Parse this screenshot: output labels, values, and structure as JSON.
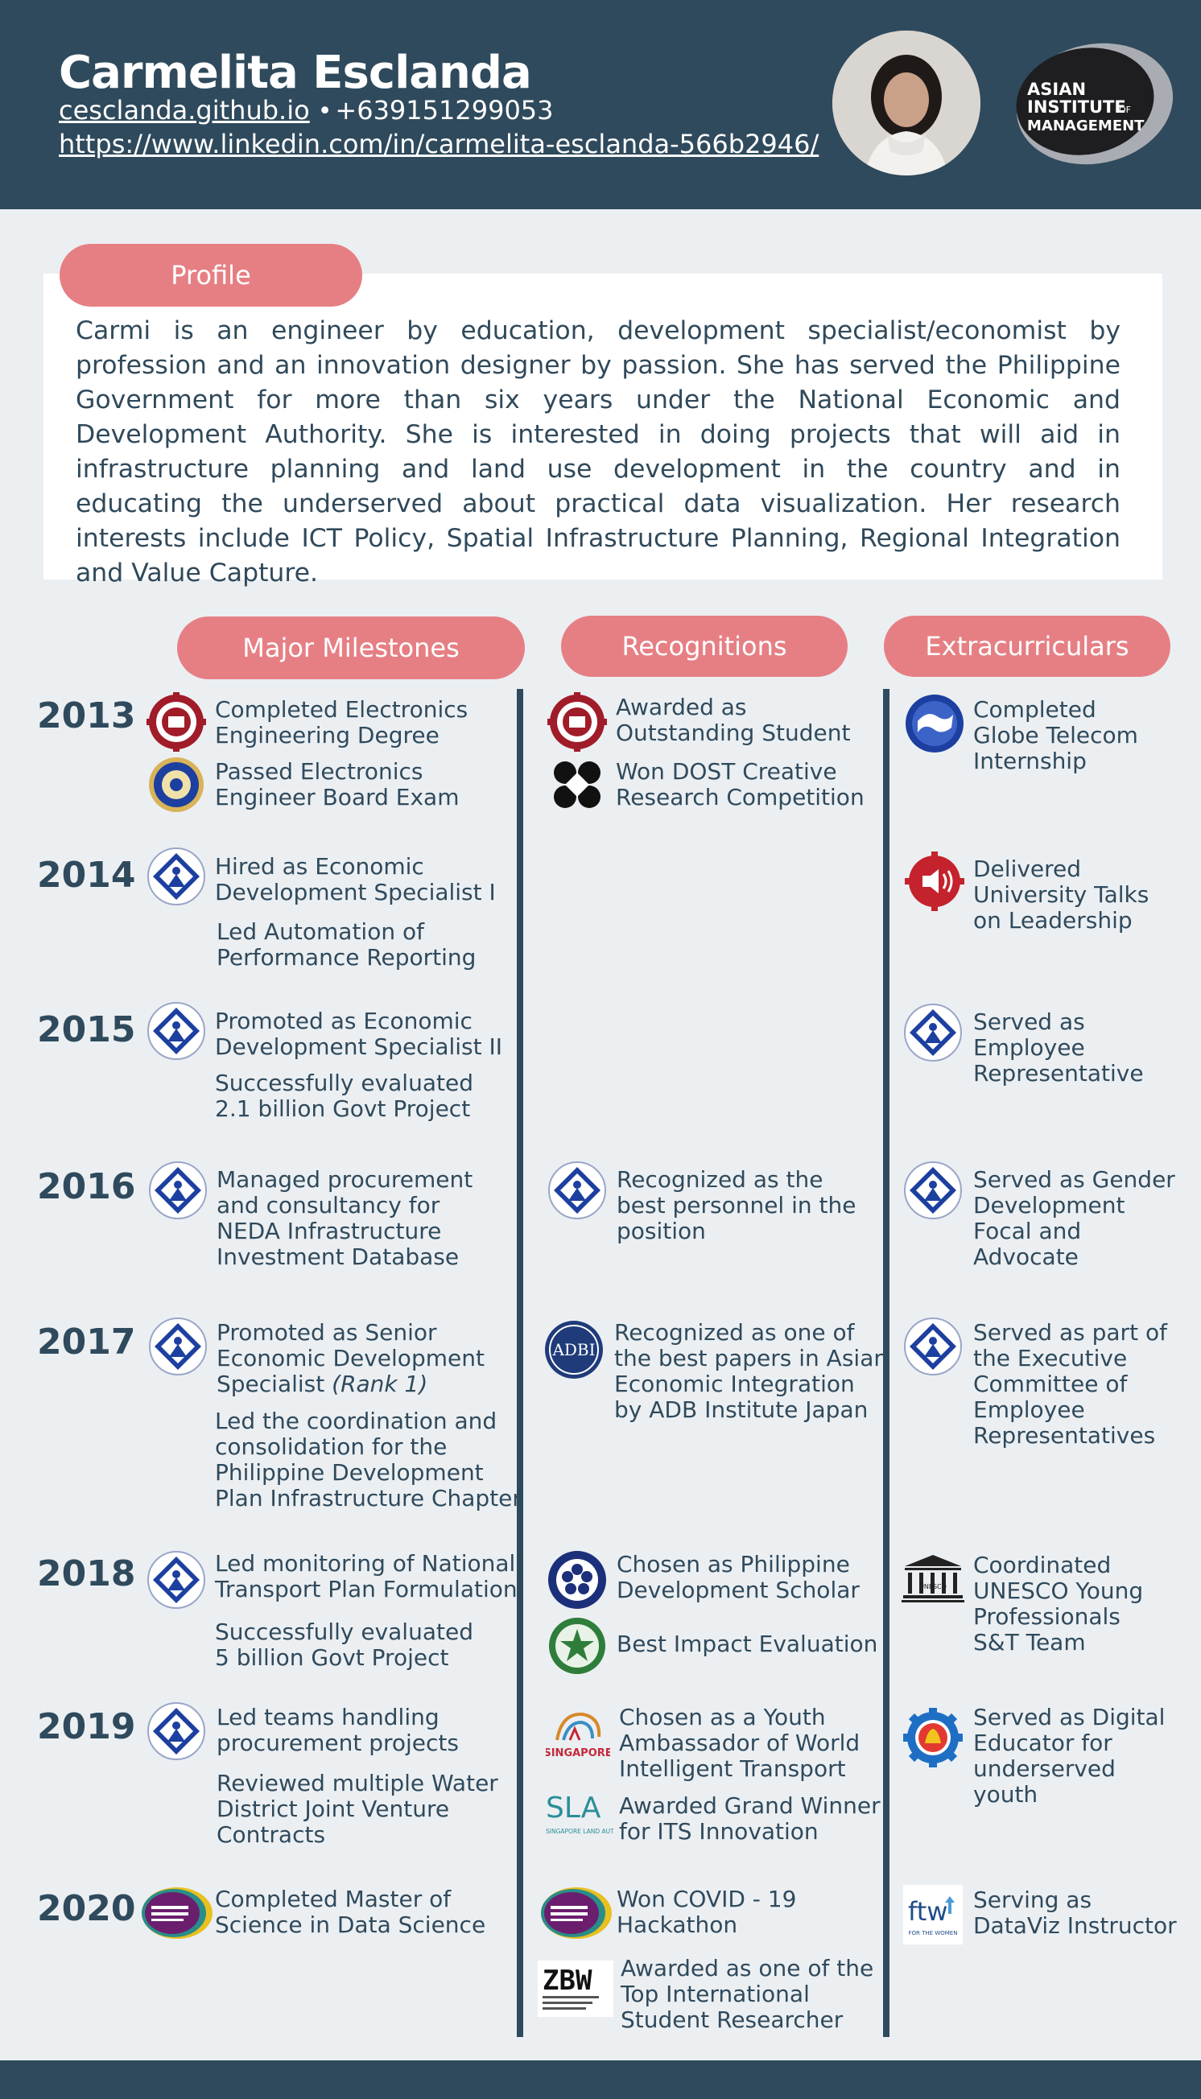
{
  "header": {
    "name": "Carmelita Esclanda",
    "website": "cesclanda.github.io",
    "separator": "•",
    "phone": "+639151299053",
    "linkedin": "https://www.linkedin.com/in/carmelita-esclanda-566b2946/",
    "logo_text": [
      "ASIAN",
      "INSTITUTE",
      "OF",
      "MANAGEMENT"
    ]
  },
  "profile": {
    "label": "Profile",
    "text": "Carmi is an engineer by education, development specialist/economist by profession and an innovation designer by passion. She has served the Philippine Government for more than six years under the National Economic and Development Authority. She is interested in doing projects that will aid in infrastructure planning and land use development in the country and in educating the underserved about practical data visualization. Her research interests include ICT Policy, Spatial Infrastructure Planning, Regional Integration and Value Capture."
  },
  "columns": {
    "milestones": "Major Milestones",
    "recognitions": "Recognitions",
    "extracurriculars": "Extracurriculars"
  },
  "years": [
    "2013",
    "2014",
    "2015",
    "2016",
    "2017",
    "2018",
    "2019",
    "2020"
  ],
  "milestones": [
    [
      "Completed Electronics",
      "Engineering Degree"
    ],
    [
      "Passed Electronics",
      "Engineer Board Exam"
    ],
    [
      "Hired as Economic",
      "Development Specialist I"
    ],
    [
      "Led Automation of",
      "Performance Reporting"
    ],
    [
      "Promoted as Economic",
      "Development Specialist II"
    ],
    [
      "Successfully evaluated",
      "2.1 billion Govt Project"
    ],
    [
      "Managed procurement",
      "and consultancy for",
      "NEDA Infrastructure",
      "Investment Database"
    ],
    [
      "Promoted as Senior",
      "Economic Development",
      "Specialist "
    ],
    [
      "Led the coordination and",
      "consolidation for the",
      "Philippine Development",
      "Plan Infrastructure Chapter"
    ],
    [
      "Led monitoring of National",
      "Transport Plan Formulation"
    ],
    [
      "Successfully evaluated",
      "5 billion Govt Project"
    ],
    [
      "Led teams handling",
      "procurement projects"
    ],
    [
      "Reviewed multiple Water",
      "District Joint Venture",
      "Contracts"
    ],
    [
      "Completed Master of",
      "Science in Data Science"
    ]
  ],
  "rank_note": "(Rank 1)",
  "recognitions": [
    [
      "Awarded as",
      "Outstanding Student"
    ],
    [
      "Won DOST Creative",
      "Research Competition"
    ],
    [
      "Recognized as the",
      "best personnel in the",
      "position"
    ],
    [
      "Recognized as one of",
      "the best papers in Asian",
      "Economic Integration",
      "by ADB Institute Japan"
    ],
    [
      "Chosen as Philippine",
      "Development Scholar"
    ],
    [
      "Best Impact Evaluation"
    ],
    [
      "Chosen as a Youth",
      "Ambassador of World",
      "Intelligent Transport"
    ],
    [
      "Awarded Grand Winner",
      "for ITS Innovation"
    ],
    [
      "Won COVID - 19",
      "Hackathon"
    ],
    [
      "Awarded as one of the",
      "Top International",
      "Student Researcher"
    ]
  ],
  "extracurriculars": [
    [
      "Completed",
      "Globe Telecom",
      "Internship"
    ],
    [
      "Delivered",
      "University Talks",
      "on Leadership"
    ],
    [
      "Served as",
      "Employee",
      "Representative"
    ],
    [
      "Served as Gender",
      "Development",
      "Focal and",
      "Advocate"
    ],
    [
      "Served as part of",
      "the Executive",
      "Committee of",
      "Employee",
      "Representatives"
    ],
    [
      "Coordinated",
      "UNESCO Young",
      "Professionals",
      "S&T Team"
    ],
    [
      "Served as Digital",
      "Educator for",
      "underserved",
      "youth"
    ],
    [
      "Serving as",
      "DataViz Instructor"
    ]
  ],
  "logo_labels": {
    "adbi": "ADBI",
    "unesco": "UNESCO",
    "singapore": "SINGAPORE",
    "sla": "SLA",
    "sla_sub": "SINGAPORE LAND AUTHORITY",
    "zbw": "ZBW",
    "ftw": "ftw",
    "ftw_sub": "FOR THE WOMEN"
  },
  "colors": {
    "navy": "#2f4a5c",
    "pill": "#e67f84",
    "background": "#eceff2",
    "neda_blue": "#1c3fa0",
    "up_red": "#a01c28"
  }
}
